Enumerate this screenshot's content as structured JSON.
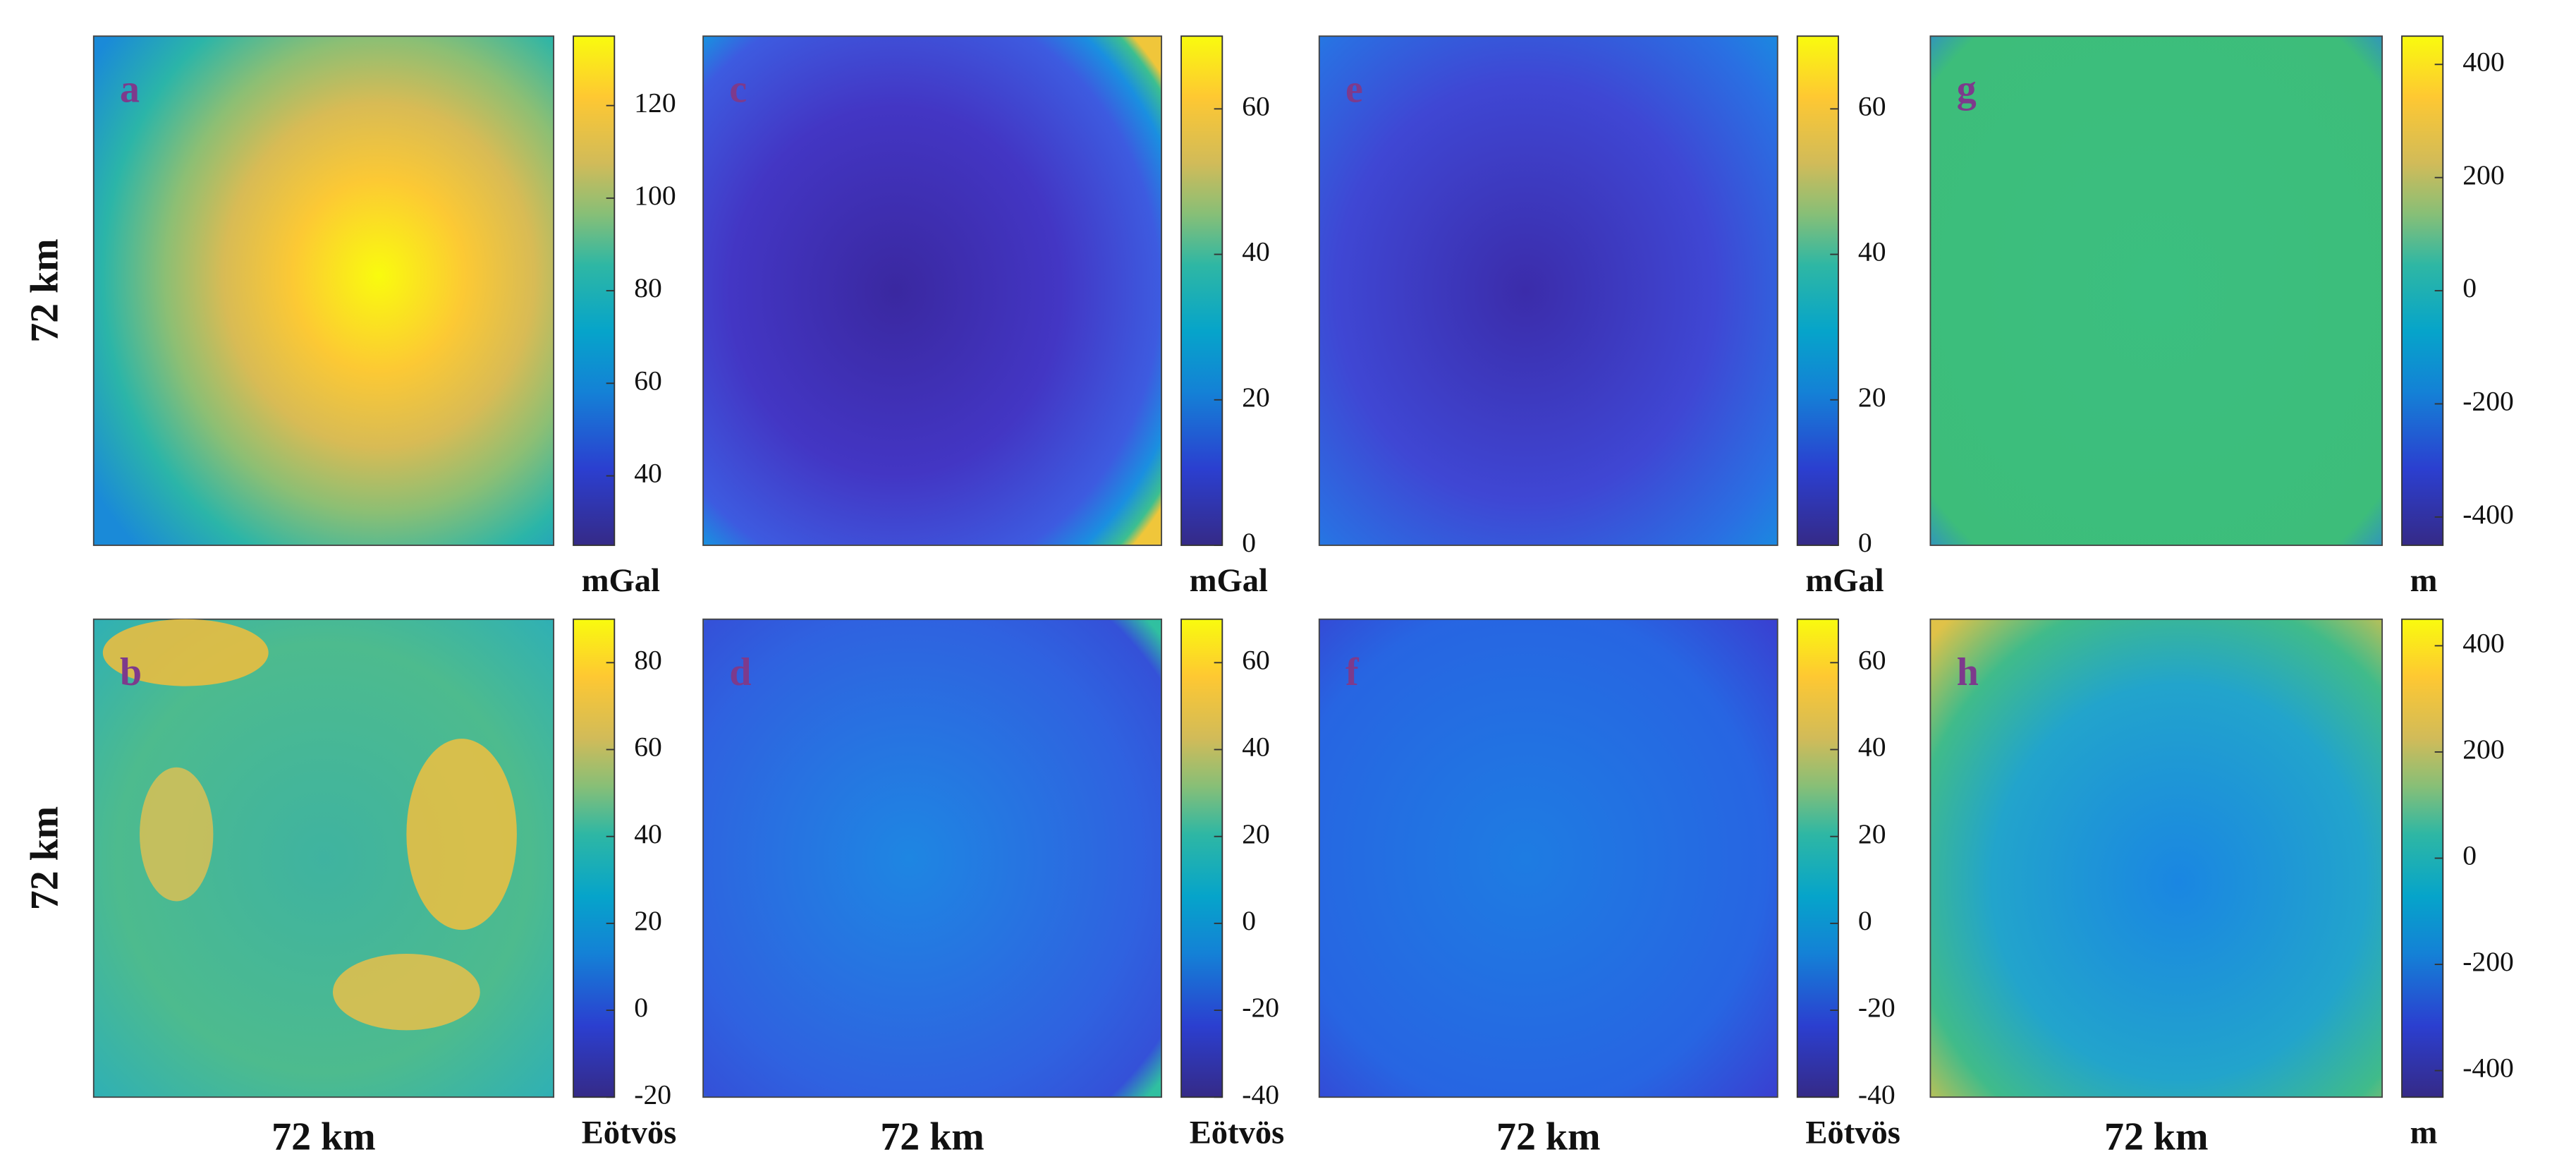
{
  "chart_data": [
    {
      "type": "heatmap",
      "panel_label": "a",
      "ylabel": "72 km",
      "clim": [
        25,
        135
      ],
      "cticks": [
        40,
        60,
        80,
        100,
        120
      ],
      "unit": "mGal"
    },
    {
      "type": "heatmap",
      "panel_label": "b",
      "ylabel": "72 km",
      "xlabel": "72 km",
      "clim": [
        -20,
        90
      ],
      "cticks": [
        -20,
        0,
        20,
        40,
        60,
        80
      ],
      "unit": "Eötvös"
    },
    {
      "type": "heatmap",
      "panel_label": "c",
      "clim": [
        0,
        70
      ],
      "cticks": [
        0,
        20,
        40,
        60
      ],
      "unit": "mGal"
    },
    {
      "type": "heatmap",
      "panel_label": "d",
      "xlabel": "72 km",
      "clim": [
        -40,
        70
      ],
      "cticks": [
        -40,
        -20,
        0,
        20,
        40,
        60
      ],
      "unit": "Eötvös"
    },
    {
      "type": "heatmap",
      "panel_label": "e",
      "clim": [
        0,
        70
      ],
      "cticks": [
        0,
        20,
        40,
        60
      ],
      "unit": "mGal"
    },
    {
      "type": "heatmap",
      "panel_label": "f",
      "xlabel": "72 km",
      "clim": [
        -40,
        70
      ],
      "cticks": [
        -40,
        -20,
        0,
        20,
        40,
        60
      ],
      "unit": "Eötvös"
    },
    {
      "type": "heatmap",
      "panel_label": "g",
      "clim": [
        -450,
        450
      ],
      "cticks": [
        -400,
        -200,
        0,
        200,
        400
      ],
      "unit": "m"
    },
    {
      "type": "heatmap",
      "panel_label": "h",
      "xlabel": "72 km",
      "clim": [
        -450,
        450
      ],
      "cticks": [
        -400,
        -200,
        0,
        200,
        400
      ],
      "unit": "m"
    }
  ]
}
